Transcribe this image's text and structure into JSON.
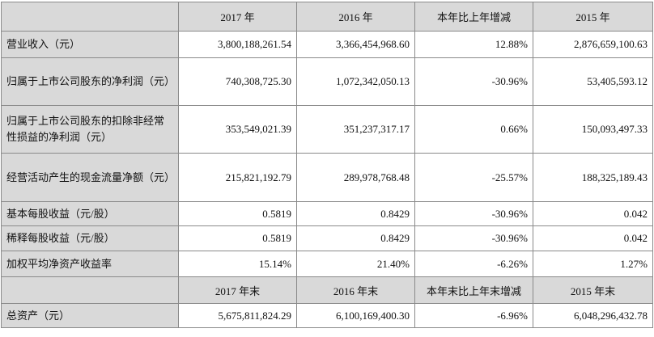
{
  "header_top": [
    "",
    "2017 年",
    "2016 年",
    "本年比上年增减",
    "2015 年"
  ],
  "rows": [
    {
      "label": "营业收入（元）",
      "v2017": "3,800,188,261.54",
      "v2016": "3,366,454,968.60",
      "change": "12.88%",
      "v2015": "2,876,659,100.63"
    },
    {
      "label": "归属于上市公司股东的净利润（元）",
      "v2017": "740,308,725.30",
      "v2016": "1,072,342,050.13",
      "change": "-30.96%",
      "v2015": "53,405,593.12"
    },
    {
      "label": "归属于上市公司股东的扣除非经常性损益的净利润（元）",
      "v2017": "353,549,021.39",
      "v2016": "351,237,317.17",
      "change": "0.66%",
      "v2015": "150,093,497.33"
    },
    {
      "label": "经营活动产生的现金流量净额（元）",
      "v2017": "215,821,192.79",
      "v2016": "289,978,768.48",
      "change": "-25.57%",
      "v2015": "188,325,189.43"
    },
    {
      "label": "基本每股收益（元/股）",
      "v2017": "0.5819",
      "v2016": "0.8429",
      "change": "-30.96%",
      "v2015": "0.042"
    },
    {
      "label": "稀释每股收益（元/股）",
      "v2017": "0.5819",
      "v2016": "0.8429",
      "change": "-30.96%",
      "v2015": "0.042"
    },
    {
      "label": "加权平均净资产收益率",
      "v2017": "15.14%",
      "v2016": "21.40%",
      "change": "-6.26%",
      "v2015": "1.27%"
    }
  ],
  "header_bottom": [
    "",
    "2017 年末",
    "2016 年末",
    "本年末比上年末增减",
    "2015 年末"
  ],
  "rows_bottom": [
    {
      "label": "总资产（元）",
      "v2017": "5,675,811,824.29",
      "v2016": "6,100,169,400.30",
      "change": "-6.96%",
      "v2015": "6,048,296,432.78"
    }
  ]
}
